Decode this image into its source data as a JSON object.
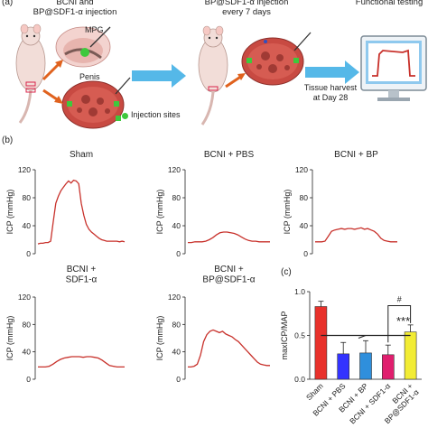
{
  "panel_a": {
    "label": "(a)",
    "step1": "BCNI and\nBP@SDF1-α injection",
    "mpg": "MPG",
    "penis": "Penis",
    "injection_sites": "Injection sites",
    "step2": "BP@SDF1-α injection\nevery 7 days",
    "tissue": "Tissue harvest\nat Day 28",
    "functional": "Functional testing",
    "colors": {
      "arrow_orange": "#e0621e",
      "arrow_blue": "#55b8e8",
      "rat": "#f2ddd8",
      "tissue": "#c84a42",
      "site": "#3ec83c"
    }
  },
  "panel_b_label": "(b)",
  "panel_c_label": "(c)",
  "chart_data": [
    {
      "type": "line",
      "title": "Sham",
      "ylabel": "ICP (mmHg)",
      "ylim": [
        0,
        120
      ],
      "yticks": [
        0,
        40,
        80,
        120
      ],
      "series": [
        {
          "values": [
            14,
            15,
            15,
            16,
            16,
            18,
            45,
            72,
            82,
            90,
            95,
            100,
            104,
            101,
            105,
            104,
            100,
            72,
            55,
            42,
            35,
            31,
            28,
            25,
            22,
            20,
            19,
            18,
            18,
            18,
            18,
            18,
            17,
            18,
            17
          ]
        }
      ]
    },
    {
      "type": "line",
      "title": "BCNI + PBS",
      "ylabel": "ICP (mmHg)",
      "ylim": [
        0,
        120
      ],
      "yticks": [
        0,
        40,
        80,
        120
      ],
      "series": [
        {
          "values": [
            16,
            16,
            17,
            17,
            17,
            18,
            20,
            23,
            27,
            30,
            31,
            31,
            30,
            29,
            27,
            24,
            21,
            19,
            18,
            18,
            17,
            17,
            17,
            17
          ]
        }
      ]
    },
    {
      "type": "line",
      "title": "BCNI + BP",
      "ylabel": "ICP (mmHg)",
      "ylim": [
        0,
        120
      ],
      "yticks": [
        0,
        40,
        80,
        120
      ],
      "series": [
        {
          "values": [
            17,
            17,
            17,
            18,
            25,
            32,
            34,
            35,
            36,
            35,
            36,
            36,
            35,
            36,
            37,
            35,
            36,
            34,
            32,
            28,
            22,
            19,
            18,
            17,
            17,
            17
          ]
        }
      ]
    },
    {
      "type": "line",
      "title": "BCNI +\nSDF1-α",
      "ylabel": "ICP (mmHg)",
      "ylim": [
        0,
        120
      ],
      "yticks": [
        0,
        40,
        80,
        120
      ],
      "series": [
        {
          "values": [
            18,
            18,
            18,
            19,
            22,
            26,
            29,
            31,
            32,
            33,
            33,
            33,
            32,
            33,
            33,
            32,
            31,
            28,
            24,
            20,
            19,
            18,
            18,
            18
          ]
        }
      ]
    },
    {
      "type": "line",
      "title": "BCNI +\nBP@SDF1-α",
      "ylabel": "ICP (mmHg)",
      "ylim": [
        0,
        120
      ],
      "yticks": [
        0,
        40,
        80,
        120
      ],
      "series": [
        {
          "values": [
            18,
            18,
            19,
            22,
            35,
            55,
            65,
            70,
            72,
            70,
            68,
            70,
            66,
            64,
            62,
            58,
            55,
            50,
            45,
            40,
            35,
            30,
            25,
            22,
            21,
            20,
            20
          ]
        }
      ]
    },
    {
      "type": "bar",
      "ylabel": "maxICP/MAP",
      "ylim": [
        0,
        1.0
      ],
      "yticks": [
        0.0,
        0.5,
        1.0
      ],
      "categories": [
        "Sham",
        "BCNI + PBS",
        "BCNI + BP",
        "BCNI + SDF1-α",
        "BCNI +\nBP@SDF1-α"
      ],
      "values": [
        0.83,
        0.29,
        0.3,
        0.28,
        0.54
      ],
      "errors": [
        0.06,
        0.13,
        0.14,
        0.11,
        0.08
      ],
      "colors": [
        "#e8312b",
        "#3333ff",
        "#2f8fdc",
        "#e01e6e",
        "#f2ec34"
      ],
      "annotations": [
        "#",
        "***"
      ]
    }
  ]
}
